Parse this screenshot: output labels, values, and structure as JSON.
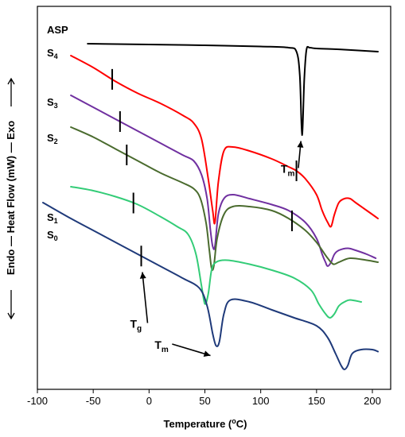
{
  "chart_data": {
    "type": "line",
    "title": "",
    "xlabel": "Temperature (°C)",
    "xlabel_parts": {
      "main": "Temperature (",
      "superscript": "o",
      "suffix": "C)"
    },
    "ylabel": "Endo — Heat Flow (mW) — Exo",
    "ylabel_parts": {
      "endo": "Endo",
      "main": "Heat Flow (mW)",
      "exo": "Exo"
    },
    "xlim": [
      -100,
      210
    ],
    "y_ticks_shown": false,
    "x_ticks": [
      "-100",
      "-50",
      "0",
      "50",
      "100",
      "150",
      "200"
    ],
    "grid": false,
    "series": [
      {
        "name": "ASP",
        "color": "#000000",
        "x": [
          -55,
          0,
          50,
          100,
          125,
          132,
          135,
          137,
          139,
          141,
          144,
          150,
          175,
          205
        ],
        "y": [
          87,
          86.8,
          86.6,
          86.3,
          86,
          85,
          79,
          64,
          78,
          85.5,
          86,
          85.8,
          85.5,
          85
        ]
      },
      {
        "name": "S4",
        "color": "#ff0000",
        "x": [
          -70,
          -50,
          -30,
          -10,
          10,
          30,
          40,
          47,
          53,
          57,
          59,
          62,
          67,
          75,
          90,
          110,
          125,
          132,
          140,
          150,
          155,
          160,
          163,
          166,
          170,
          175,
          180,
          185,
          195,
          205
        ],
        "y": [
          84,
          81,
          77.5,
          74.5,
          72,
          69,
          67,
          63,
          53,
          45,
          42,
          52,
          60,
          61,
          60,
          58,
          56,
          55,
          53,
          49,
          45,
          42,
          41,
          44,
          47,
          48,
          48,
          47,
          45,
          43
        ]
      },
      {
        "name": "S3",
        "color": "#7030a0",
        "x": [
          -70,
          -50,
          -30,
          -10,
          10,
          30,
          40,
          47,
          52,
          55,
          57,
          59,
          62,
          67,
          75,
          90,
          110,
          125,
          140,
          150,
          155,
          158,
          160,
          163,
          166,
          170,
          178,
          185,
          195,
          203
        ],
        "y": [
          74,
          71,
          68,
          65,
          62,
          59,
          57.5,
          54,
          48,
          40,
          36,
          36,
          44,
          48,
          49,
          48,
          46.5,
          45,
          42,
          38,
          34,
          32,
          31,
          32,
          34,
          35,
          35.5,
          35,
          34,
          33
        ]
      },
      {
        "name": "S2",
        "color": "#4a6b2e",
        "x": [
          -70,
          -50,
          -30,
          -10,
          10,
          30,
          40,
          46,
          51,
          54,
          56,
          58,
          61,
          67,
          75,
          90,
          110,
          125,
          140,
          150,
          155,
          160,
          165,
          170,
          180,
          195,
          205
        ],
        "y": [
          66,
          63.5,
          60.5,
          57.5,
          54.5,
          52,
          50.5,
          48,
          42,
          35,
          30.5,
          31,
          38,
          44,
          46,
          46,
          45,
          43,
          40,
          37,
          35,
          33,
          31.5,
          32,
          33,
          32.5,
          32
        ]
      },
      {
        "name": "S1",
        "color": "#33cc77",
        "x": [
          -70,
          -50,
          -30,
          -10,
          10,
          25,
          35,
          42,
          47,
          50,
          53,
          56,
          60,
          70,
          90,
          110,
          130,
          145,
          152,
          158,
          162,
          166,
          170,
          175,
          180,
          190
        ],
        "y": [
          51,
          50,
          48.5,
          46.5,
          43.5,
          41,
          39,
          34,
          26,
          21.5,
          24,
          30,
          32,
          32.5,
          31.5,
          30,
          28,
          25,
          21.5,
          19,
          18,
          19,
          21,
          22,
          22.5,
          22
        ]
      },
      {
        "name": "S0",
        "color": "#1f3a7a",
        "x": [
          -95,
          -70,
          -50,
          -30,
          -10,
          10,
          30,
          45,
          52,
          57,
          60,
          63,
          67,
          73,
          90,
          110,
          130,
          150,
          160,
          167,
          172,
          175,
          178,
          182,
          190,
          200,
          205
        ],
        "y": [
          47,
          43,
          40,
          37,
          34,
          31,
          28,
          25.5,
          21,
          14,
          11,
          12,
          19,
          22.5,
          22,
          20,
          18,
          16,
          13,
          9,
          6,
          5,
          6,
          9,
          10,
          10,
          9.5
        ]
      }
    ],
    "tg_markers": [
      {
        "series": "S4",
        "x": -33
      },
      {
        "series": "S4",
        "x": 132
      },
      {
        "series": "S3",
        "x": -26
      },
      {
        "series": "S2",
        "x": -20
      },
      {
        "series": "S2",
        "x": 128
      },
      {
        "series": "S1",
        "x": -14
      },
      {
        "series": "S0",
        "x": -7
      }
    ],
    "curve_labels": [
      {
        "main": "ASP",
        "sub": ""
      },
      {
        "main": "S",
        "sub": "4"
      },
      {
        "main": "S",
        "sub": "3"
      },
      {
        "main": "S",
        "sub": "2"
      },
      {
        "main": "S",
        "sub": "1"
      },
      {
        "main": "S",
        "sub": "0"
      }
    ],
    "annotations": [
      {
        "main": "T",
        "sub": "m",
        "x": 118,
        "y": 54.5,
        "arrow_to": [
          136,
          62.5
        ]
      },
      {
        "main": "T",
        "sub": "g",
        "x": -17,
        "y": 15.5,
        "arrow_to": [
          -6,
          29.5
        ]
      },
      {
        "main": "T",
        "sub": "m",
        "x": 5,
        "y": 10.2,
        "arrow_to": [
          55,
          8.5
        ]
      }
    ]
  }
}
